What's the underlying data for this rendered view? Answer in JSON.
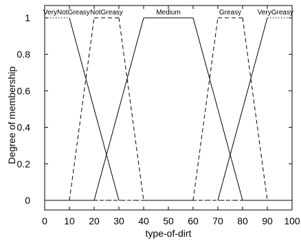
{
  "chart_data": {
    "type": "line",
    "title": "",
    "xlabel": "type-of-dirt",
    "ylabel": "Degree of membership",
    "xlim": [
      0,
      100
    ],
    "ylim": [
      0,
      1
    ],
    "x_ticks": [
      "0",
      "10",
      "20",
      "30",
      "40",
      "50",
      "60",
      "70",
      "80",
      "90",
      "100"
    ],
    "y_ticks": [
      "0",
      "0.2",
      "0.4",
      "0.6",
      "0.8",
      "1"
    ],
    "grid": false,
    "series": [
      {
        "name": "VeryNotGreasy",
        "style": "dotted-solid",
        "points": [
          [
            0,
            1
          ],
          [
            10,
            1
          ],
          [
            30,
            0
          ],
          [
            100,
            0
          ]
        ]
      },
      {
        "name": "NotGreasy",
        "style": "dashed",
        "points": [
          [
            0,
            0
          ],
          [
            10,
            0
          ],
          [
            20,
            1
          ],
          [
            30,
            1
          ],
          [
            40,
            0
          ],
          [
            100,
            0
          ]
        ]
      },
      {
        "name": "Medium",
        "style": "solid",
        "points": [
          [
            0,
            0
          ],
          [
            20,
            0
          ],
          [
            40,
            1
          ],
          [
            60,
            1
          ],
          [
            80,
            0
          ],
          [
            100,
            0
          ]
        ]
      },
      {
        "name": "Greasy",
        "style": "dashed",
        "points": [
          [
            0,
            0
          ],
          [
            60,
            0
          ],
          [
            70,
            1
          ],
          [
            80,
            1
          ],
          [
            90,
            0
          ],
          [
            100,
            0
          ]
        ]
      },
      {
        "name": "VeryGreasy",
        "style": "dotted-solid",
        "points": [
          [
            0,
            0
          ],
          [
            70,
            0
          ],
          [
            90,
            1
          ],
          [
            100,
            1
          ]
        ]
      }
    ],
    "colors": {
      "line": "#000000",
      "frame": "#000000",
      "background": "#ffffff"
    }
  }
}
